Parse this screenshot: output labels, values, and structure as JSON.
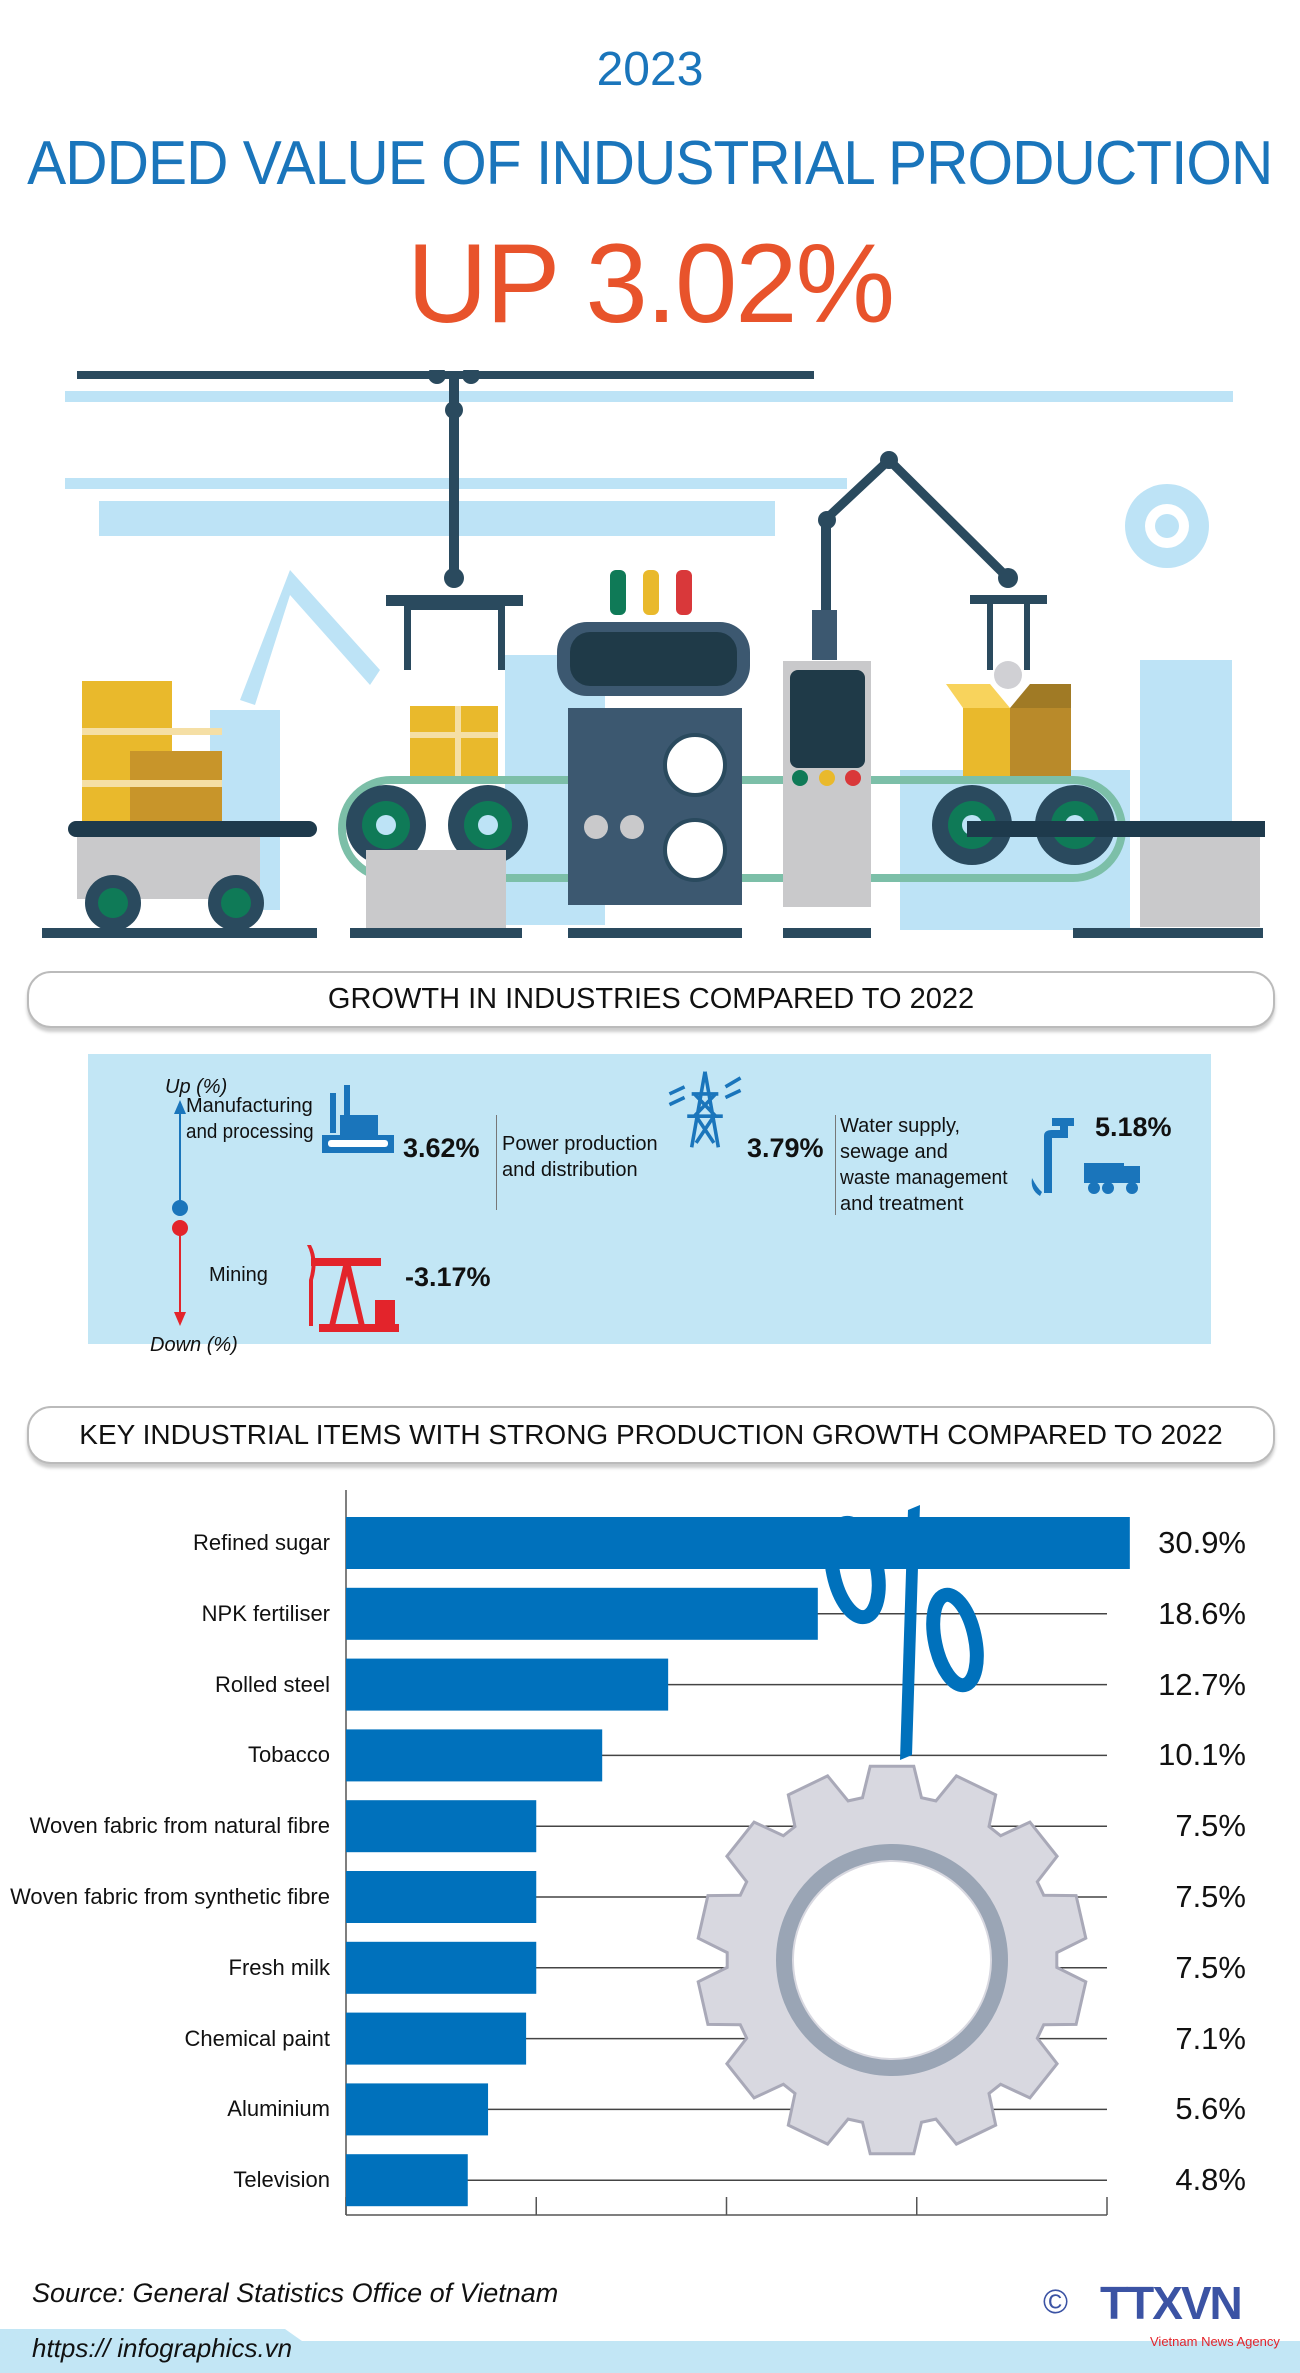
{
  "header": {
    "year": "2023",
    "title": "ADDED VALUE OF INDUSTRIAL PRODUCTION",
    "headline": "UP 3.02%"
  },
  "colors": {
    "brand_blue": "#1a75bb",
    "headline_red": "#e8532b",
    "bar_blue": "#0071bc",
    "panel_bg": "#c2e6f5",
    "down_red": "#e3242b"
  },
  "growth_section": {
    "title": "GROWTH IN INDUSTRIES COMPARED TO 2022",
    "up_label": "Up (%)",
    "down_label": "Down (%)",
    "industries": [
      {
        "name_lines": [
          "Manufacturing",
          "and processing"
        ],
        "value": "3.62%",
        "direction": "up",
        "icon": "factory-icon"
      },
      {
        "name_lines": [
          "Power production",
          "and distribution"
        ],
        "value": "3.79%",
        "direction": "up",
        "icon": "power-tower-icon"
      },
      {
        "name_lines": [
          "Water supply,",
          "sewage and",
          "waste management",
          "and treatment"
        ],
        "value": "5.18%",
        "direction": "up",
        "icon": "water-truck-icon"
      },
      {
        "name_lines": [
          "Mining"
        ],
        "value": "-3.17%",
        "direction": "down",
        "icon": "oil-pump-icon"
      }
    ]
  },
  "items_section": {
    "title": "KEY INDUSTRIAL ITEMS WITH STRONG PRODUCTION GROWTH COMPARED TO 2022"
  },
  "chart_data": {
    "type": "bar",
    "orientation": "horizontal",
    "categories": [
      "Refined sugar",
      "NPK fertiliser",
      "Rolled steel",
      "Tobacco",
      "Woven fabric from natural fibre",
      "Woven fabric from synthetic fibre",
      "Fresh milk",
      "Chemical paint",
      "Aluminium",
      "Television"
    ],
    "values": [
      30.9,
      18.6,
      12.7,
      10.1,
      7.5,
      7.5,
      7.5,
      7.1,
      5.6,
      4.8
    ],
    "value_labels": [
      "30.9%",
      "18.6%",
      "12.7%",
      "10.1%",
      "7.5%",
      "7.5%",
      "7.5%",
      "7.1%",
      "5.6%",
      "4.8%"
    ],
    "unit": "%",
    "xlim": [
      0,
      30
    ],
    "x_ticks": [
      0,
      7.5,
      15,
      22.5,
      30
    ],
    "grid": true,
    "color": "#0071bc"
  },
  "footer": {
    "source": "Source: General Statistics Office of Vietnam",
    "url": "https:// infographics.vn",
    "logo_text": "TTXVN",
    "logo_subtext": "Vietnam News Agency",
    "copyright": "©"
  }
}
